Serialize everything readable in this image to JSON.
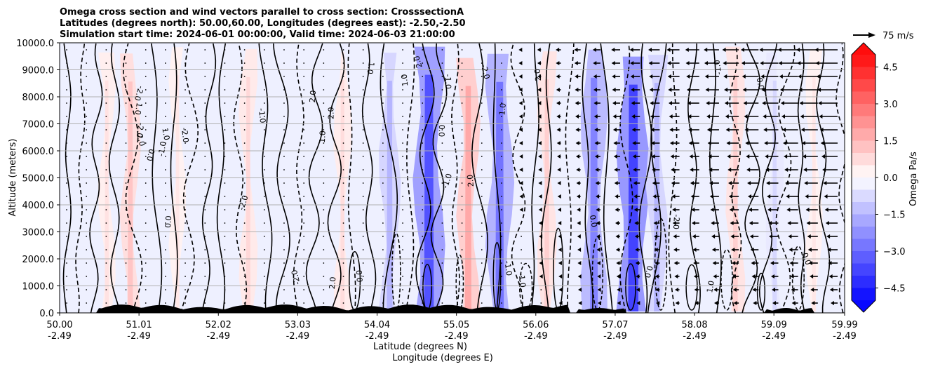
{
  "chart_data": {
    "type": "contour",
    "title_lines": [
      "Omega cross section and wind vectors parallel to cross section: CrosssectionA",
      "Latitudes (degrees north): 50.00,60.00, Longitudes (degrees east): -2.50,-2.50",
      "Simulation start time: 2024-06-01 00:00:00, Valid time: 2024-06-03 21:00:00"
    ],
    "xlabel_lat": "Latitude (degrees N)",
    "xlabel_lon": "Longitude (degrees E)",
    "ylabel": "Altitude (meters)",
    "x_ticks": [
      {
        "lat": "50.00",
        "lon": "-2.49"
      },
      {
        "lat": "51.01",
        "lon": "-2.49"
      },
      {
        "lat": "52.02",
        "lon": "-2.49"
      },
      {
        "lat": "53.03",
        "lon": "-2.49"
      },
      {
        "lat": "54.04",
        "lon": "-2.49"
      },
      {
        "lat": "55.05",
        "lon": "-2.49"
      },
      {
        "lat": "56.06",
        "lon": "-2.49"
      },
      {
        "lat": "57.07",
        "lon": "-2.49"
      },
      {
        "lat": "58.08",
        "lon": "-2.49"
      },
      {
        "lat": "59.09",
        "lon": "-2.49"
      },
      {
        "lat": "59.99",
        "lon": "-2.49"
      }
    ],
    "xlim": [
      50.0,
      59.99
    ],
    "y_ticks": [
      "0.0",
      "1000.0",
      "2000.0",
      "3000.0",
      "4000.0",
      "5000.0",
      "6000.0",
      "7000.0",
      "8000.0",
      "9000.0",
      "10000.0"
    ],
    "ylim": [
      0,
      10000
    ],
    "grid": "horizontal",
    "colorbar": {
      "label": "Omega Pa/s",
      "ticks": [
        "4.5",
        "3.0",
        "1.5",
        "0.0",
        "−1.5",
        "−3.0",
        "−4.5"
      ],
      "range": [
        -5,
        5
      ],
      "extend": "both"
    },
    "quiver_key": {
      "label": "75 m/s",
      "speed": 75
    },
    "contour_labels": [
      "0.0",
      "1.0",
      "-1.0",
      "2.0",
      "-2.0"
    ],
    "omega_bands": [
      {
        "lat": 50.6,
        "value": 0.6
      },
      {
        "lat": 50.9,
        "value": 1.2
      },
      {
        "lat": 51.5,
        "value": 0.5
      },
      {
        "lat": 52.4,
        "value": 0.8
      },
      {
        "lat": 53.6,
        "value": 0.7
      },
      {
        "lat": 54.2,
        "value": -1.5
      },
      {
        "lat": 54.7,
        "value": -3.5
      },
      {
        "lat": 55.2,
        "value": 1.8
      },
      {
        "lat": 55.6,
        "value": -2.8
      },
      {
        "lat": 56.2,
        "value": 1.0
      },
      {
        "lat": 56.8,
        "value": -2.5
      },
      {
        "lat": 57.3,
        "value": -3.8
      },
      {
        "lat": 57.6,
        "value": -1.5
      },
      {
        "lat": 58.6,
        "value": 1.0
      },
      {
        "lat": 59.1,
        "value": -0.8
      },
      {
        "lat": 59.6,
        "value": 0.5
      }
    ],
    "colors": {
      "positive": "#ff0000",
      "negative": "#0000ff",
      "neutral": "#ffffff",
      "terrain": "#000000",
      "grid": "#b0b0b0"
    }
  }
}
